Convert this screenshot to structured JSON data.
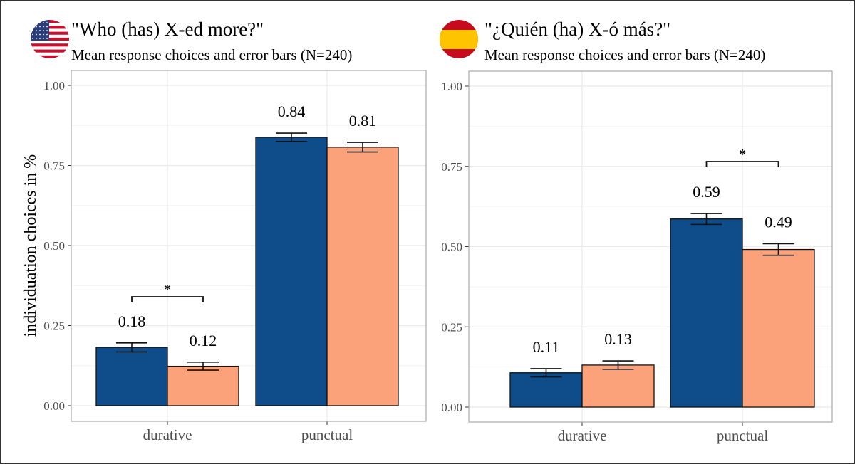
{
  "y_axis_label": "individuation choices in %",
  "colors": {
    "series_1": "#0f4c8a",
    "series_2": "#fca27a",
    "grid": "#ebebeb"
  },
  "chart_data": [
    {
      "type": "bar",
      "flag_icon": "us-flag-icon",
      "title": "\"Who (has) X-ed more?\"",
      "subtitle": "Mean response choices and error bars (N=240)",
      "ylabel": "individuation choices in %",
      "ylim": [
        0,
        1
      ],
      "yticks": [
        "0.00",
        "0.25",
        "0.50",
        "0.75",
        "1.00"
      ],
      "categories": [
        "durative",
        "punctual"
      ],
      "grid": true,
      "series": [
        {
          "values": [
            0.182,
            0.838
          ],
          "error_low": [
            0.168,
            0.825
          ],
          "error_high": [
            0.196,
            0.851
          ],
          "labels": [
            "0.18",
            "0.84"
          ]
        },
        {
          "values": [
            0.123,
            0.807
          ],
          "error_low": [
            0.111,
            0.792
          ],
          "error_high": [
            0.136,
            0.822
          ],
          "labels": [
            "0.12",
            "0.81"
          ]
        }
      ],
      "significance": [
        {
          "category": "durative",
          "label": "*",
          "y": 0.34
        }
      ]
    },
    {
      "type": "bar",
      "flag_icon": "spain-flag-icon",
      "title": "\"¿Quién (ha) X-ó más?\"",
      "subtitle": "Mean response choices and error bars (N=240)",
      "ylabel": "",
      "ylim": [
        0,
        1
      ],
      "yticks": [
        "0.00",
        "0.25",
        "0.50",
        "0.75",
        "1.00"
      ],
      "categories": [
        "durative",
        "punctual"
      ],
      "grid": true,
      "series": [
        {
          "values": [
            0.107,
            0.586
          ],
          "error_low": [
            0.094,
            0.569
          ],
          "error_high": [
            0.12,
            0.603
          ],
          "labels": [
            "0.11",
            "0.59"
          ]
        },
        {
          "values": [
            0.131,
            0.491
          ],
          "error_low": [
            0.118,
            0.473
          ],
          "error_high": [
            0.144,
            0.509
          ],
          "labels": [
            "0.13",
            "0.49"
          ]
        }
      ],
      "significance": [
        {
          "category": "punctual",
          "label": "*",
          "y": 0.765
        }
      ]
    }
  ]
}
